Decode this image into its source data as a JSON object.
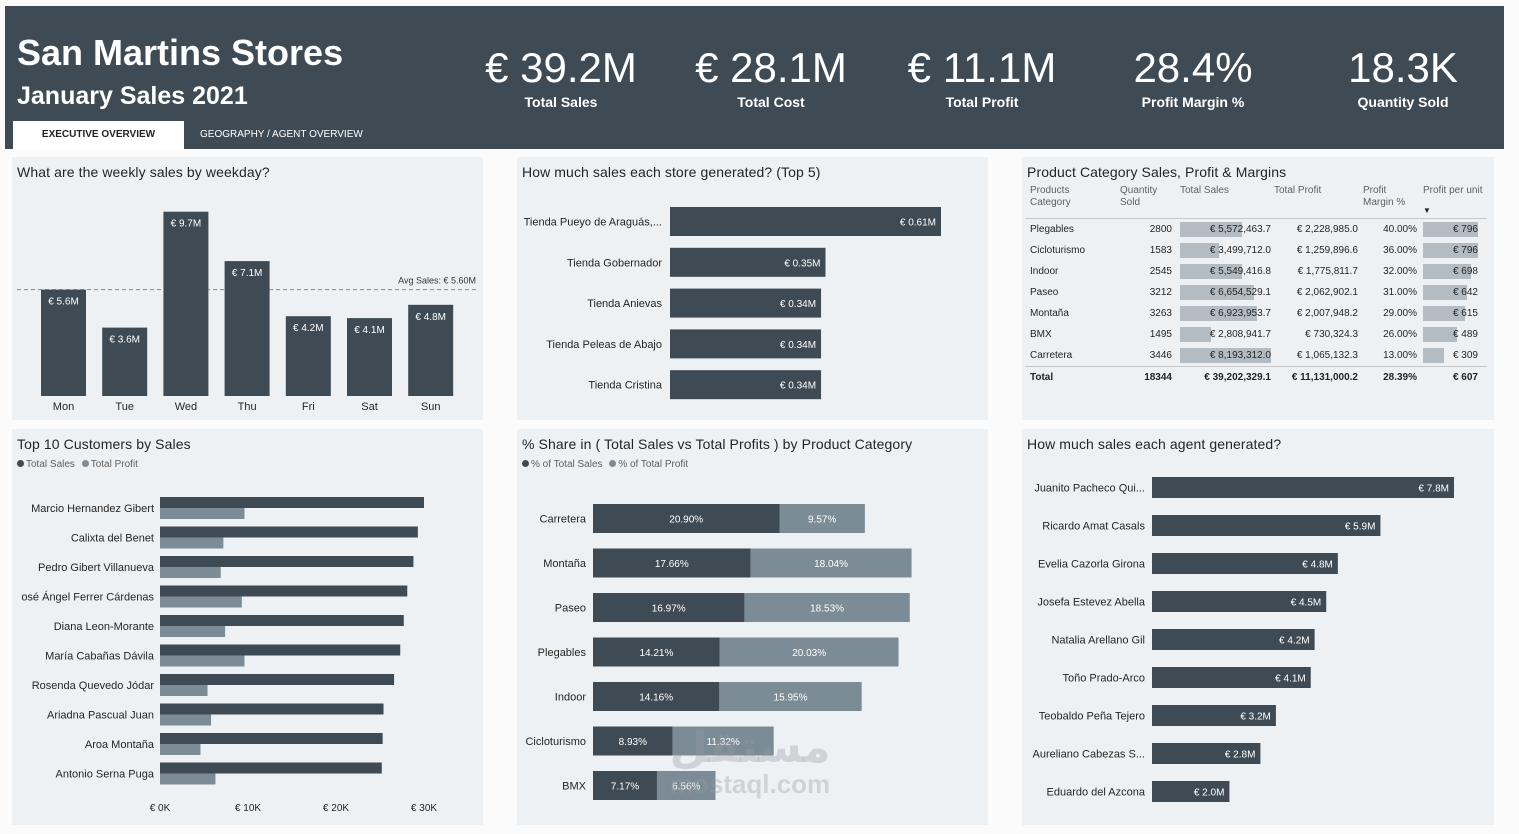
{
  "header": {
    "title": "San Martins Stores",
    "subtitle": "January Sales 2021",
    "kpis": [
      {
        "value": "€ 39.2M",
        "label": "Total Sales"
      },
      {
        "value": "€ 28.1M",
        "label": "Total Cost"
      },
      {
        "value": "€ 11.1M",
        "label": "Total Profit"
      },
      {
        "value": "28.4%",
        "label": "Profit Margin %"
      },
      {
        "value": "18.3K",
        "label": "Quantity Sold"
      }
    ],
    "tabs": [
      {
        "label": "EXECUTIVE OVERVIEW"
      },
      {
        "label": "GEOGRAPHY / AGENT OVERVIEW"
      }
    ]
  },
  "colors": {
    "header": "#3e4b54",
    "bar_dark": "#3e4b54",
    "bar_light": "#7c8c97",
    "databar": "#b3bcc3",
    "panel": "#eef1f4"
  },
  "weekday": {
    "title": "What are the weekly sales by weekday?",
    "avg_label": "Avg Sales: € 5.60M",
    "chart_data": {
      "type": "bar",
      "categories": [
        "Mon",
        "Tue",
        "Wed",
        "Thu",
        "Fri",
        "Sat",
        "Sun"
      ],
      "values": [
        5.6,
        3.6,
        9.7,
        7.1,
        4.2,
        4.1,
        4.8
      ],
      "labels": [
        "€ 5.6M",
        "€ 3.6M",
        "€ 9.7M",
        "€ 7.1M",
        "€ 4.2M",
        "€ 4.1M",
        "€ 4.8M"
      ],
      "average": 5.6,
      "ylim": [
        0,
        10
      ]
    }
  },
  "stores": {
    "title": "How much sales each store generated? (Top 5)",
    "chart_data": {
      "type": "bar",
      "categories": [
        "Tienda Pueyo de Araguás,...",
        "Tienda Gobernador",
        "Tienda Anievas",
        "Tienda Peleas de Abajo",
        "Tienda Cristina"
      ],
      "values": [
        0.61,
        0.35,
        0.34,
        0.34,
        0.34
      ],
      "labels": [
        "€ 0.61M",
        "€ 0.35M",
        "€ 0.34M",
        "€ 0.34M",
        "€ 0.34M"
      ],
      "xlim": [
        0,
        0.61
      ]
    }
  },
  "matrix": {
    "title": "Product Category Sales, Profit & Margins",
    "headers": {
      "category": "Products Category",
      "qty": "Quantity Sold",
      "sales": "Total Sales",
      "profit": "Total Profit",
      "margin": "Profit Margin %",
      "ppu": "Profit per unit",
      "sort_icon": "▼"
    },
    "rows": [
      {
        "category": "Plegables",
        "qty": "2800",
        "sales": "€ 5,572,463.7",
        "profit": "€ 2,228,985.0",
        "margin": "40.00%",
        "ppu": "€ 796",
        "sales_val": 5572463.7,
        "ppu_val": 796
      },
      {
        "category": "Cicloturismo",
        "qty": "1583",
        "sales": "€ 3,499,712.0",
        "profit": "€ 1,259,896.6",
        "margin": "36.00%",
        "ppu": "€ 796",
        "sales_val": 3499712.0,
        "ppu_val": 796
      },
      {
        "category": "Indoor",
        "qty": "2545",
        "sales": "€ 5,549,416.8",
        "profit": "€ 1,775,811.7",
        "margin": "32.00%",
        "ppu": "€ 698",
        "sales_val": 5549416.8,
        "ppu_val": 698
      },
      {
        "category": "Paseo",
        "qty": "3212",
        "sales": "€ 6,654,529.1",
        "profit": "€ 2,062,902.1",
        "margin": "31.00%",
        "ppu": "€ 642",
        "sales_val": 6654529.1,
        "ppu_val": 642
      },
      {
        "category": "Montaña",
        "qty": "3263",
        "sales": "€ 6,923,953.7",
        "profit": "€ 2,007,948.2",
        "margin": "29.00%",
        "ppu": "€ 615",
        "sales_val": 6923953.7,
        "ppu_val": 615
      },
      {
        "category": "BMX",
        "qty": "1495",
        "sales": "€ 2,808,941.7",
        "profit": "€ 730,324.3",
        "margin": "26.00%",
        "ppu": "€ 489",
        "sales_val": 2808941.7,
        "ppu_val": 489
      },
      {
        "category": "Carretera",
        "qty": "3446",
        "sales": "€ 8,193,312.0",
        "profit": "€ 1,065,132.3",
        "margin": "13.00%",
        "ppu": "€ 309",
        "sales_val": 8193312.0,
        "ppu_val": 309
      }
    ],
    "total": {
      "category": "Total",
      "qty": "18344",
      "sales": "€ 39,202,329.1",
      "profit": "€ 11,131,000.2",
      "margin": "28.39%",
      "ppu": "€ 607"
    }
  },
  "customers": {
    "title": "Top 10 Customers by Sales",
    "legend": [
      "Total Sales",
      "Total Profit"
    ],
    "chart_data": {
      "type": "bar",
      "categories": [
        "Marcio Hernandez Gibert",
        "Calixta del Benet",
        "Pedro Gibert Villanueva",
        "osé Ángel Ferrer Cárdenas",
        "Diana Leon-Morante",
        "María Cabañas Dávila",
        "Rosenda Quevedo Jódar",
        "Ariadna Pascual Juan",
        "Aroa Montaña",
        "Antonio Serna Puga"
      ],
      "series": [
        {
          "name": "Total Sales",
          "values": [
            30000,
            29300,
            28800,
            28100,
            27700,
            27300,
            26600,
            25400,
            25300,
            25200
          ]
        },
        {
          "name": "Total Profit",
          "values": [
            9600,
            7200,
            6900,
            9300,
            7400,
            9600,
            5400,
            5800,
            4600,
            6300
          ]
        }
      ],
      "xticks": [
        "€ 0K",
        "€ 10K",
        "€ 20K",
        "€ 30K"
      ],
      "xlim": [
        0,
        30000
      ]
    }
  },
  "share": {
    "title": "% Share in ( Total Sales vs Total Profits ) by Product Category",
    "legend": [
      "% of Total Sales",
      "% of Total Profit"
    ],
    "chart_data": {
      "type": "bar",
      "categories": [
        "Carretera",
        "Montaña",
        "Paseo",
        "Plegables",
        "Indoor",
        "Cicloturismo",
        "BMX"
      ],
      "series": [
        {
          "name": "% of Total Sales",
          "values": [
            20.9,
            17.66,
            16.97,
            14.21,
            14.16,
            8.93,
            7.17
          ],
          "labels": [
            "20.90%",
            "17.66%",
            "16.97%",
            "14.21%",
            "14.16%",
            "8.93%",
            "7.17%"
          ]
        },
        {
          "name": "% of Total Profit",
          "values": [
            9.57,
            18.04,
            18.53,
            20.03,
            15.95,
            11.32,
            6.56
          ],
          "labels": [
            "9.57%",
            "18.04%",
            "18.53%",
            "20.03%",
            "15.95%",
            "11.32%",
            "6.56%"
          ]
        }
      ],
      "xlim": [
        0,
        39
      ]
    }
  },
  "agents": {
    "title": "How much sales each agent generated?",
    "chart_data": {
      "type": "bar",
      "categories": [
        "Juanito Pacheco Qui...",
        "Ricardo Amat Casals",
        "Evelia Cazorla Girona",
        "Josefa Estevez Abella",
        "Natalia Arellano Gil",
        "Toño Prado-Arco",
        "Teobaldo Peña Tejero",
        "Aureliano Cabezas S...",
        "Eduardo del Azcona"
      ],
      "values": [
        7.8,
        5.9,
        4.8,
        4.5,
        4.2,
        4.1,
        3.2,
        2.8,
        2.0
      ],
      "labels": [
        "€ 7.8M",
        "€ 5.9M",
        "€ 4.8M",
        "€ 4.5M",
        "€ 4.2M",
        "€ 4.1M",
        "€ 3.2M",
        "€ 2.8M",
        "€ 2.0M"
      ],
      "xlim": [
        0,
        7.8
      ]
    }
  },
  "watermark": {
    "arabic": "مستقل",
    "latin": "mostaql.com"
  }
}
